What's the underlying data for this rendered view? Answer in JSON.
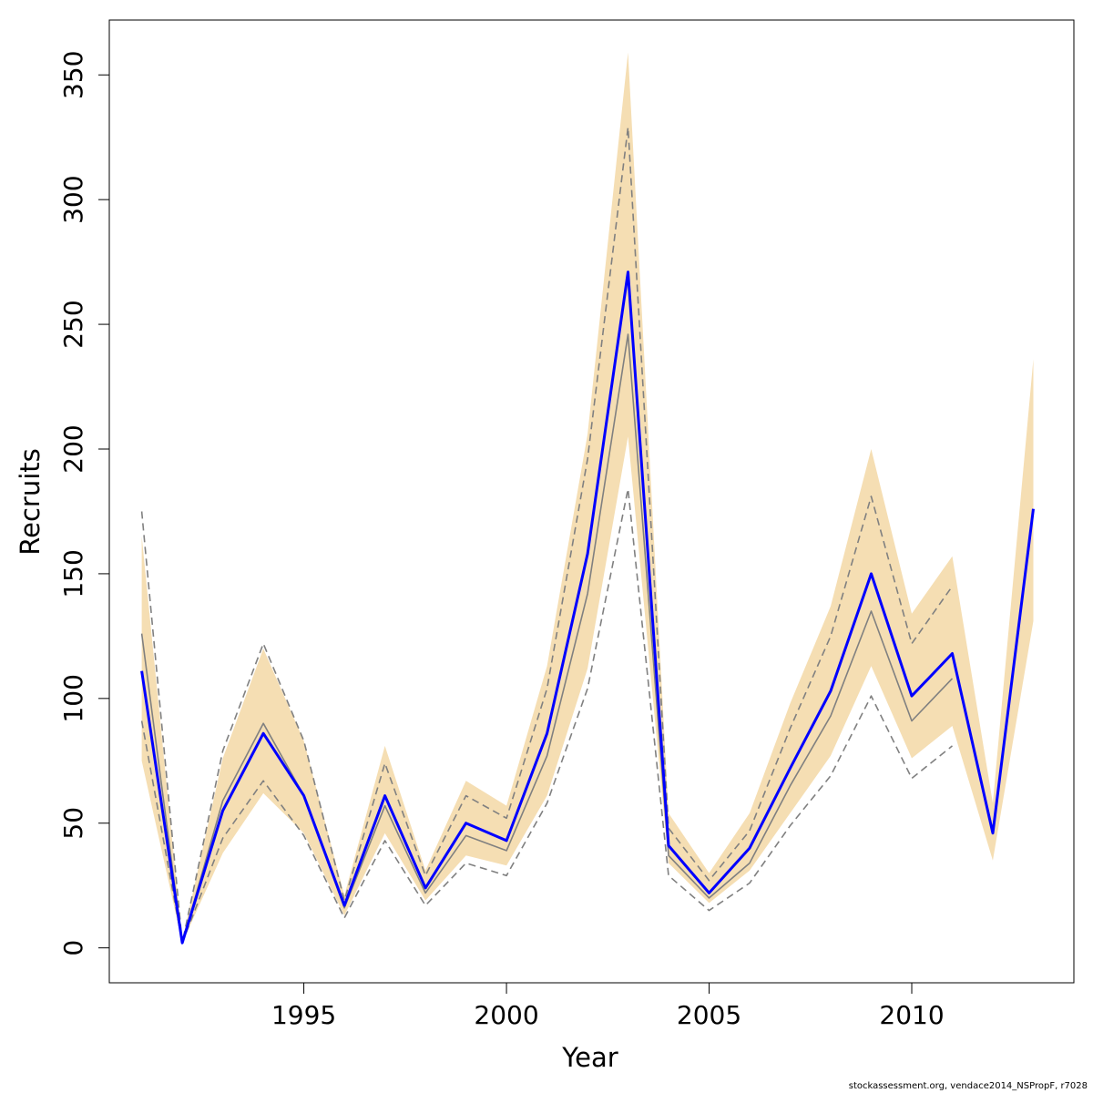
{
  "chart_data": {
    "type": "line",
    "title": "",
    "xlabel": "Year",
    "ylabel": "Recruits",
    "xlim": [
      1990.2,
      2014.0
    ],
    "ylim": [
      -14,
      372
    ],
    "x_ticks": [
      1995,
      2000,
      2005,
      2010
    ],
    "x_tick_labels": [
      "1995",
      "2000",
      "2005",
      "2010"
    ],
    "y_ticks": [
      0,
      50,
      100,
      150,
      200,
      250,
      300,
      350
    ],
    "y_tick_labels": [
      "0",
      "50",
      "100",
      "150",
      "200",
      "250",
      "300",
      "350"
    ],
    "grid": false,
    "legend": "none",
    "x": [
      1991,
      1992,
      1993,
      1994,
      1995,
      1996,
      1997,
      1998,
      1999,
      2000,
      2001,
      2002,
      2003,
      2004,
      2005,
      2006,
      2007,
      2008,
      2009,
      2010,
      2011,
      2012,
      2013
    ],
    "band": {
      "lower": [
        75,
        2,
        38,
        62,
        46,
        13,
        46,
        19,
        37,
        33,
        61,
        112,
        205,
        34,
        18,
        31,
        54,
        77,
        113,
        76,
        89,
        35,
        131
      ],
      "upper": [
        165,
        3,
        76,
        120,
        83,
        21,
        81,
        31,
        67,
        57,
        113,
        206,
        359,
        54,
        30,
        54,
        98,
        137,
        200,
        134,
        157,
        58,
        236
      ],
      "color": "#f5deb3"
    },
    "series": [
      {
        "color": "#808080",
        "style": "solid",
        "values": [
          126,
          2,
          59,
          90,
          61,
          16,
          57,
          22,
          45,
          39,
          77,
          142,
          246,
          37,
          20,
          34,
          65,
          93,
          135,
          91,
          108,
          null,
          null
        ]
      },
      {
        "color": "#808080",
        "style": "dashed",
        "values": [
          175,
          2,
          79,
          122,
          83,
          19,
          74,
          29,
          61,
          52,
          104,
          196,
          329,
          48,
          27,
          47,
          88,
          125,
          181,
          122,
          145,
          null,
          null
        ]
      },
      {
        "color": "#808080",
        "style": "dashed",
        "values": [
          91,
          2,
          44,
          67,
          45,
          12,
          43,
          17,
          34,
          29,
          58,
          104,
          184,
          29,
          15,
          26,
          49,
          69,
          101,
          68,
          81,
          null,
          null
        ]
      },
      {
        "color": "#0000ff",
        "style": "solid",
        "values": [
          111,
          2,
          55,
          86,
          61,
          17,
          61,
          24,
          50,
          43,
          86,
          158,
          271,
          41,
          22,
          40,
          72,
          103,
          150,
          101,
          118,
          46,
          176
        ]
      }
    ]
  },
  "footer": {
    "source_note": "stockassessment.org, vendace2014_NSPropF, r7028"
  }
}
